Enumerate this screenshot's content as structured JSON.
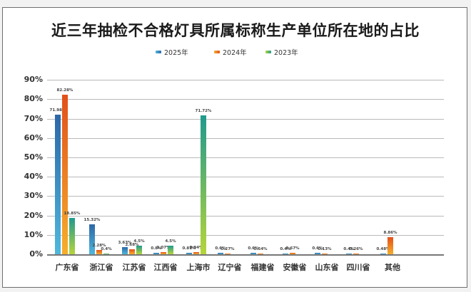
{
  "chart_data": {
    "type": "bar",
    "title": "近三年抽检不合格灯具所属标称生产单位所在地的占比",
    "xlabel": "",
    "ylabel": "",
    "ylim": [
      0,
      90
    ],
    "yticks": [
      "0%",
      "10%",
      "20%",
      "30%",
      "40%",
      "50%",
      "60%",
      "70%",
      "80%",
      "90%"
    ],
    "grid": true,
    "legend_position": "top",
    "categories": [
      "广东省",
      "浙江省",
      "江苏省",
      "江西省",
      "上海市",
      "辽宁省",
      "福建省",
      "安徽省",
      "山东省",
      "四川省",
      "其他"
    ],
    "series": [
      {
        "name": "2025年",
        "color": "#2d67a8",
        "values": [
          71.98,
          15.32,
          3.63,
          0.8,
          0.81,
          0.6,
          0.6,
          0.4,
          0.6,
          0.4,
          0.48
        ],
        "labels": [
          "71.98%",
          "15.32%",
          "3.63%",
          "0.8%",
          "0.81%",
          "0.6%",
          "0.6%",
          "0.4%",
          "0.6%",
          "0.4%",
          "0.48%"
        ]
      },
      {
        "name": "2024年",
        "color": "#e2501a",
        "values": [
          82.28,
          2.28,
          2.68,
          1.07,
          0.94,
          0.27,
          0.54,
          0.67,
          0.13,
          0.26,
          8.86
        ],
        "labels": [
          "82.28%",
          "2.28%",
          "2.68%",
          "1.07%",
          "0.94%",
          "0.27%",
          "0.54%",
          "0.67%",
          "0.13%",
          "0.26%",
          "8.86%"
        ]
      },
      {
        "name": "2023年",
        "color": "#1f9a8e",
        "values": [
          18.85,
          0.4,
          4.5,
          4.5,
          71.72,
          null,
          null,
          null,
          null,
          null,
          null
        ],
        "labels": [
          "18.85%",
          "0.4%",
          "4.5%",
          "4.5%",
          "71.72%",
          null,
          null,
          null,
          null,
          null,
          null
        ]
      }
    ]
  }
}
